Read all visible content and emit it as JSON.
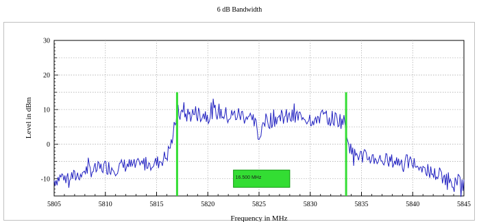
{
  "chart_data": {
    "type": "line",
    "title": "6 dB Bandwidth",
    "xlabel": "Frequency in MHz",
    "ylabel": "Level in dBm",
    "xlim": [
      5805,
      5845
    ],
    "ylim": [
      -15,
      30
    ],
    "x_ticks": [
      "5805",
      "5810",
      "5815",
      "5820",
      "5825",
      "5830",
      "5835",
      "5840",
      "5845"
    ],
    "y_ticks": [
      "30",
      "20",
      "10",
      "0",
      "-10"
    ],
    "grid": true,
    "series": [
      {
        "color": "#2020c0",
        "x": [
          5805,
          5806,
          5807,
          5808,
          5809,
          5810,
          5811,
          5812,
          5813,
          5814,
          5815,
          5816,
          5816.5,
          5817,
          5818,
          5819,
          5820,
          5821,
          5822,
          5823,
          5824,
          5824.8,
          5825,
          5825.3,
          5826,
          5827,
          5828,
          5829,
          5830,
          5831,
          5832,
          5833,
          5833.4,
          5834,
          5835,
          5836,
          5837,
          5838,
          5839,
          5840,
          5841,
          5842,
          5843,
          5844,
          5845
        ],
        "y": [
          -10.5,
          -9,
          -9.5,
          -7.5,
          -7.5,
          -6.5,
          -7,
          -6,
          -6.5,
          -5.5,
          -5.5,
          -3.5,
          1,
          9,
          8.5,
          9,
          8.5,
          9.5,
          8,
          8.5,
          8,
          5,
          1,
          6,
          7,
          8,
          7.5,
          8,
          7.5,
          8,
          7.5,
          7,
          6,
          -2.5,
          -3.5,
          -4,
          -4.5,
          -5,
          -5,
          -5.5,
          -7,
          -8.5,
          -9.5,
          -10.5,
          -11.5
        ]
      }
    ],
    "markers": {
      "color": "#33dd33",
      "lines_x": [
        5817,
        5833.5
      ],
      "line_y_range": [
        -15,
        15
      ],
      "label": "16.500 MHz"
    }
  }
}
